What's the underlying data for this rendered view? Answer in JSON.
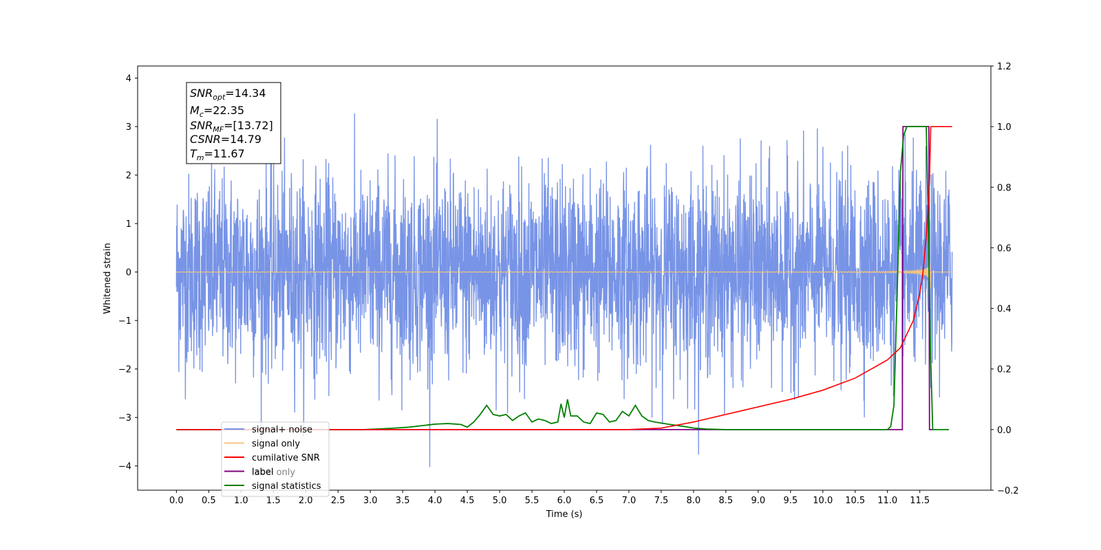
{
  "chart_data": {
    "type": "line",
    "xlabel": "Time (s)",
    "ylabel": "Whitened strain",
    "xlim": [
      -0.6,
      12.6
    ],
    "ylim": [
      -4.5,
      4.25
    ],
    "y2lim": [
      -0.2,
      1.2
    ],
    "grid": false,
    "legend_position": "lower-left",
    "xticks": [
      "0.0",
      "0.5",
      "1.0",
      "1.5",
      "2.0",
      "2.5",
      "3.0",
      "3.5",
      "4.0",
      "4.5",
      "5.0",
      "5.5",
      "6.0",
      "6.5",
      "7.0",
      "7.5",
      "8.0",
      "8.5",
      "9.0",
      "9.5",
      "10.0",
      "10.5",
      "11.0",
      "11.5"
    ],
    "yticks": [
      "−4",
      "−3",
      "−2",
      "−1",
      "0",
      "1",
      "2",
      "3",
      "4"
    ],
    "y2ticks": [
      "−0.2",
      "0.0",
      "0.2",
      "0.4",
      "0.6",
      "0.8",
      "1.0",
      "1.2"
    ],
    "info_box": {
      "snr_opt": {
        "sym": "SNR",
        "sub": "opt",
        "value": "=14.34"
      },
      "mc": {
        "sym": "M",
        "sub": "c",
        "value": "=22.35"
      },
      "snr_mf": {
        "sym": "SNR",
        "sub": "MF",
        "value": "=[13.72]"
      },
      "csnr": {
        "sym": "CSNR",
        "value": "=14.79"
      },
      "tm": {
        "sym": "T",
        "sub": "m",
        "value": "=11.67"
      }
    },
    "series": [
      {
        "name": "signal+ noise",
        "color": "#7894e6",
        "axis": "left",
        "noise_amplitude": 1.0,
        "x_range": [
          0.0,
          12.0
        ]
      },
      {
        "name": "signal only",
        "color": "#f5c57e",
        "axis": "left",
        "merger_time": 11.67
      },
      {
        "name": "cumilative SNR",
        "color": "#ff0000",
        "axis": "right",
        "x": [
          0.0,
          7.0,
          7.5,
          8.0,
          8.5,
          9.0,
          9.5,
          10.0,
          10.5,
          11.0,
          11.2,
          11.4,
          11.5,
          11.55,
          11.6,
          11.65,
          11.67,
          12.0
        ],
        "y": [
          0.0,
          0.0,
          0.005,
          0.025,
          0.05,
          0.075,
          0.1,
          0.13,
          0.17,
          0.23,
          0.27,
          0.36,
          0.45,
          0.52,
          0.64,
          0.82,
          1.0,
          1.0
        ]
      },
      {
        "name": "label",
        "color": "#800080",
        "axis": "right",
        "x": [
          0.0,
          11.23,
          11.24,
          11.64,
          11.65,
          11.7
        ],
        "y": [
          0,
          0,
          1,
          1,
          0,
          0
        ]
      },
      {
        "name": "label only",
        "color": "#808080",
        "axis": "right",
        "hidden_line": true
      },
      {
        "name": "signal statistics",
        "color": "#008000",
        "axis": "right",
        "x": [
          0.0,
          2.9,
          3.3,
          3.6,
          3.8,
          4.0,
          4.2,
          4.4,
          4.5,
          4.6,
          4.7,
          4.8,
          4.9,
          5.0,
          5.1,
          5.2,
          5.3,
          5.4,
          5.5,
          5.6,
          5.7,
          5.8,
          5.9,
          5.95,
          6.0,
          6.05,
          6.1,
          6.2,
          6.3,
          6.4,
          6.5,
          6.6,
          6.7,
          6.8,
          6.9,
          7.0,
          7.1,
          7.2,
          7.3,
          7.4,
          7.6,
          7.8,
          8.0,
          8.2,
          8.5,
          9.0,
          11.0,
          11.05,
          11.1,
          11.15,
          11.2,
          11.25,
          11.3,
          11.35,
          11.4,
          11.6,
          11.63,
          11.66,
          11.7,
          11.95
        ],
        "y": [
          0.0,
          0.0,
          0.004,
          0.008,
          0.013,
          0.018,
          0.02,
          0.017,
          0.008,
          0.025,
          0.05,
          0.08,
          0.05,
          0.045,
          0.05,
          0.03,
          0.045,
          0.055,
          0.025,
          0.035,
          0.03,
          0.02,
          0.025,
          0.085,
          0.04,
          0.1,
          0.045,
          0.045,
          0.025,
          0.02,
          0.055,
          0.05,
          0.025,
          0.03,
          0.06,
          0.045,
          0.08,
          0.045,
          0.03,
          0.025,
          0.018,
          0.012,
          0.005,
          0.002,
          0.0,
          0.0,
          0.0,
          0.01,
          0.08,
          0.45,
          0.85,
          0.97,
          1.0,
          1.0,
          1.0,
          1.0,
          0.7,
          0.3,
          0.0,
          0.0
        ]
      }
    ]
  }
}
